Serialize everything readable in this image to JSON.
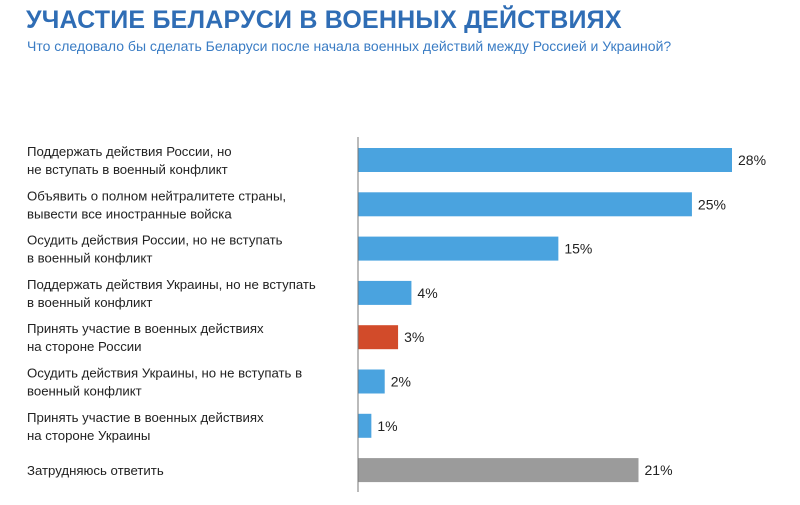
{
  "title": "УЧАСТИЕ БЕЛАРУСИ В ВОЕННЫХ ДЕЙСТВИЯХ",
  "subtitle": "Что следовало бы сделать Беларуси после начала военных действий между Россией и Украиной?",
  "chart_data": {
    "type": "bar",
    "orientation": "horizontal",
    "categories": [
      [
        "Поддержать действия России, но",
        "не вступать в военный конфликт"
      ],
      [
        "Объявить о полном нейтралитете страны,",
        "вывести все иностранные войска"
      ],
      [
        "Осудить действия России, но не вступать",
        "в военный конфликт"
      ],
      [
        "Поддержать действия Украины, но не вступать",
        "в военный конфликт"
      ],
      [
        "Принять участие в военных действиях",
        "на стороне России"
      ],
      [
        "Осудить действия Украины, но не вступать в",
        "военный конфликт"
      ],
      [
        "Принять участие в военных действиях",
        "на стороне Украины"
      ],
      [
        "Затрудняюсь ответить"
      ]
    ],
    "values": [
      28,
      25,
      15,
      4,
      3,
      2,
      1,
      21
    ],
    "value_labels": [
      "28%",
      "25%",
      "15%",
      "4%",
      "3%",
      "2%",
      "1%",
      "21%"
    ],
    "colors": [
      "#4aa3df",
      "#4aa3df",
      "#4aa3df",
      "#4aa3df",
      "#d24b2a",
      "#4aa3df",
      "#4aa3df",
      "#9b9b9b"
    ],
    "unit": "%",
    "xlim": [
      0,
      28
    ],
    "grid": false
  }
}
